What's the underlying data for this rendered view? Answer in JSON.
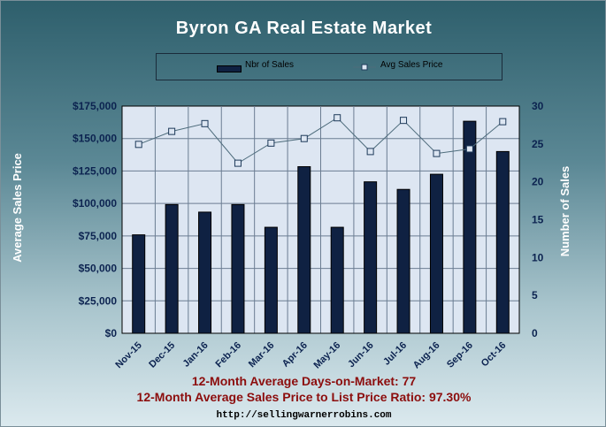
{
  "chart_data": {
    "type": "bar",
    "title": "Byron GA Real Estate Market",
    "categories": [
      "Nov-15",
      "Dec-15",
      "Jan-16",
      "Feb-16",
      "Mar-16",
      "Apr-16",
      "May-16",
      "Jun-16",
      "Jul-16",
      "Aug-16",
      "Sep-16",
      "Oct-16"
    ],
    "series": [
      {
        "name": "Nbr of Sales",
        "kind": "bar",
        "axis": "right",
        "color": "#0f2142",
        "values": [
          13,
          17,
          16,
          17,
          14,
          22,
          14,
          20,
          19,
          21,
          28,
          24
        ]
      },
      {
        "name": "Avg Sales Price",
        "kind": "line",
        "axis": "left",
        "color": "#4e6c7c",
        "values": [
          145500,
          155500,
          161500,
          131000,
          146500,
          150000,
          166000,
          140000,
          164000,
          138500,
          142000,
          163000
        ]
      }
    ],
    "ylabel_left": "Average Sales Price",
    "ylabel_right": "Number of Sales",
    "ylim_left": [
      0,
      175000
    ],
    "ylim_right": [
      0,
      30
    ],
    "yticks_left": [
      "$0",
      "$25,000",
      "$50,000",
      "$75,000",
      "$100,000",
      "$125,000",
      "$150,000",
      "$175,000"
    ],
    "yticks_right": [
      "0",
      "5",
      "10",
      "15",
      "20",
      "25",
      "30"
    ],
    "grid": true,
    "legend_position": "top"
  },
  "footer": {
    "days_on_market": "12-Month Average Days-on-Market: 77",
    "price_ratio": "12-Month Average Sales Price to List Price Ratio: 97.30%",
    "url": "http://sellingwarnerrobins.com"
  },
  "colors": {
    "plot_background": "#dde6f2",
    "bar_fill": "#0f2142",
    "line": "#4e6c7c",
    "footer_text": "#8c0d0d",
    "axis_text": "#0c2350"
  }
}
